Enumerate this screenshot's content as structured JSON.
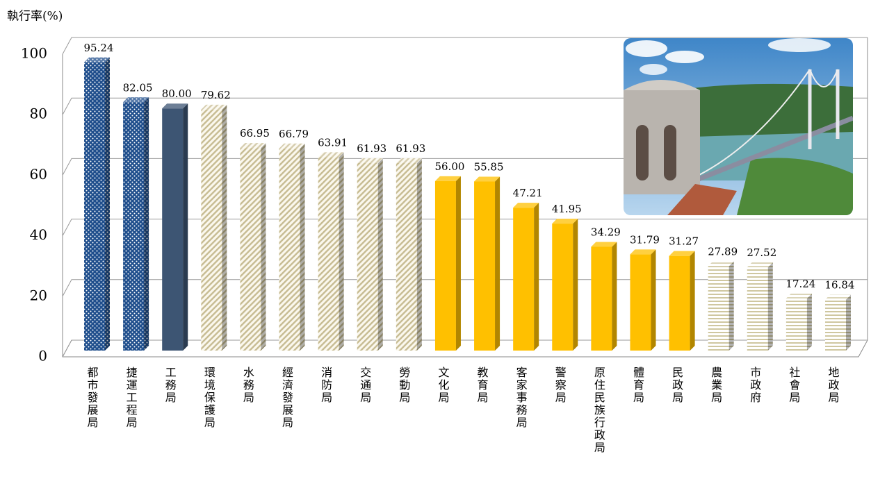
{
  "chart_data": {
    "type": "bar3d",
    "ylabel": "執行率(%)",
    "categories": [
      "都市發展局",
      "捷運工程局",
      "工務局",
      "環境保護局",
      "水務局",
      "經濟發展局",
      "消防局",
      "交通局",
      "勞動局",
      "文化局",
      "教育局",
      "客家事務局",
      "警察局",
      "原住民族行政局",
      "體育局",
      "民政局",
      "農業局",
      "市政府",
      "社會局",
      "地政局"
    ],
    "values": [
      95.24,
      82.05,
      80.0,
      79.62,
      66.95,
      66.79,
      63.91,
      61.93,
      61.93,
      56.0,
      55.85,
      47.21,
      41.95,
      34.29,
      31.79,
      31.27,
      27.89,
      27.52,
      17.24,
      16.84
    ],
    "value_labels": [
      "95.24",
      "82.05",
      "80.00",
      "79.62",
      "66.95",
      "66.79",
      "63.91",
      "61.93",
      "61.93",
      "56.00",
      "55.85",
      "47.21",
      "41.95",
      "34.29",
      "31.79",
      "31.27",
      "27.89",
      "27.52",
      "17.24",
      "16.84"
    ],
    "colors": [
      "#1f4e8c",
      "#1f4e8c",
      "#3d5573",
      "#c8bd94",
      "#c8bd94",
      "#c8bd94",
      "#c8bd94",
      "#c8bd94",
      "#c8bd94",
      "#ffc000",
      "#ffc000",
      "#ffc000",
      "#ffc000",
      "#ffc000",
      "#ffc000",
      "#ffc000",
      "#cfc7a0",
      "#cfc7a0",
      "#cfc7a0",
      "#cfc7a0"
    ],
    "patterns": [
      "dots",
      "dots",
      "solid",
      "diagonal",
      "diagonal",
      "diagonal",
      "diagonal",
      "diagonal",
      "diagonal",
      "solid",
      "solid",
      "solid",
      "solid",
      "solid",
      "solid",
      "solid",
      "hstripes",
      "hstripes",
      "hstripes",
      "hstripes"
    ],
    "ylim": [
      0,
      100
    ],
    "yticks": [
      0,
      20,
      40,
      60,
      80,
      100
    ],
    "grid": true
  }
}
